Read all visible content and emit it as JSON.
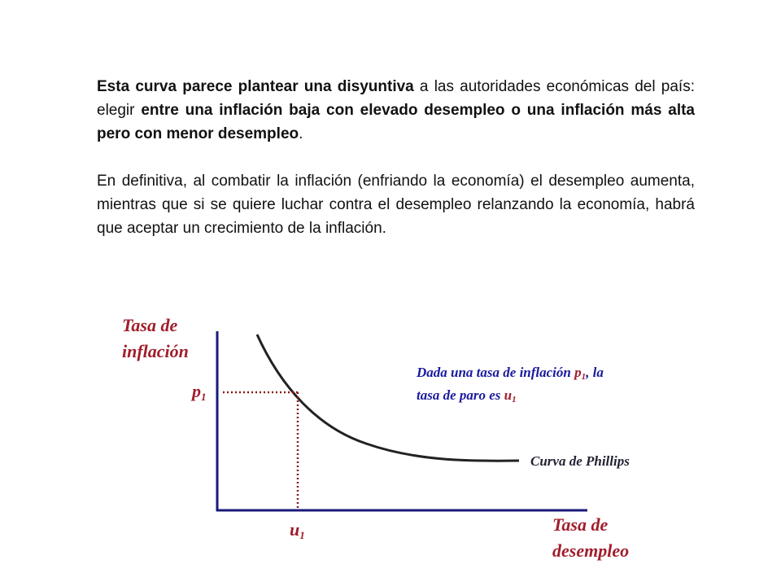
{
  "paragraph1": {
    "bold1": "Esta curva parece plantear una disyuntiva",
    "normal1": " a las autoridades económicas del país: elegir ",
    "bold2": "entre una inflación baja con elevado desempleo o una inflación más alta pero con menor desempleo",
    "normal2": "."
  },
  "paragraph2": "En definitiva, al combatir la inflación (enfriando la economía) el desempleo aumenta, mientras que si se quiere luchar contra el desempleo relanzando la economía, habrá que aceptar un crecimiento de la inflación.",
  "diagram": {
    "y_axis_label_line1": "Tasa de",
    "y_axis_label_line2": "inflación",
    "x_axis_label_line1": "Tasa de",
    "x_axis_label_line2": "desempleo",
    "p1_label": "p",
    "p1_subscript": "1",
    "u1_label": "u",
    "u1_subscript": "1",
    "annotation_line1_text": "Dada una tasa de inflación ",
    "annotation_p": "p",
    "annotation_p_sub": "1",
    "annotation_line1_end": ", la",
    "annotation_line2_text": "tasa de paro es ",
    "annotation_u": "u",
    "annotation_u_sub": "1",
    "curve_label": "Curva de Phillips",
    "colors": {
      "axis_label": "#a11d2b",
      "annotation": "#1a1a9e",
      "curve_label": "#222233",
      "axes": "#1a1a7a",
      "curve": "#222222",
      "dotted": "#8b1a1a"
    }
  }
}
